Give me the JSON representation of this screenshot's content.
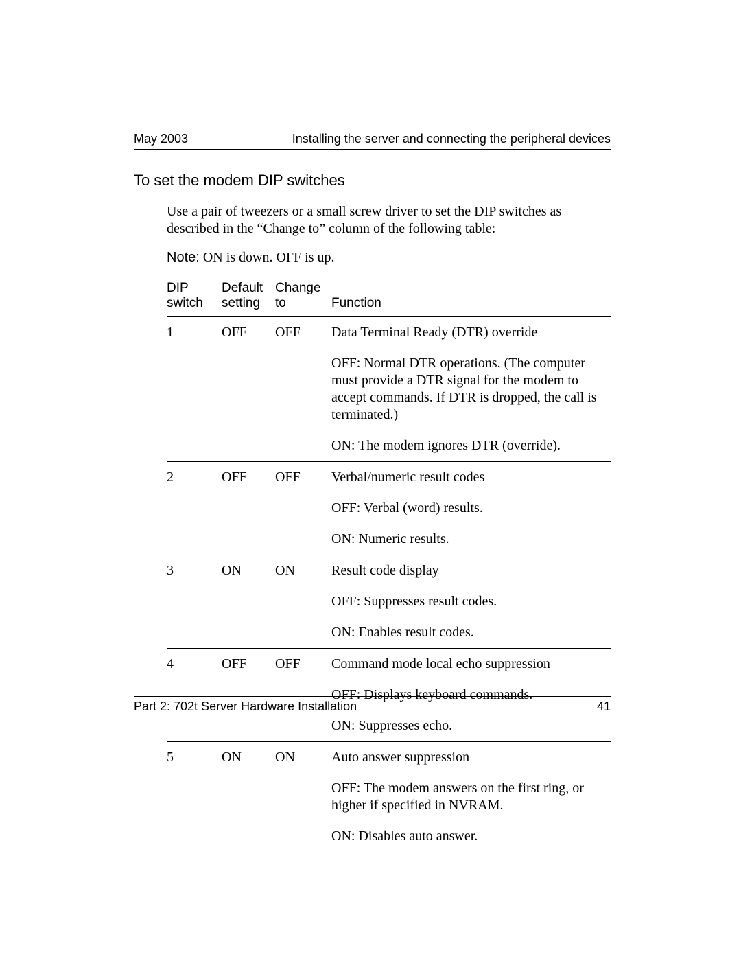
{
  "header": {
    "date": "May 2003",
    "chapter_title": "Installing the server and connecting the peripheral devices"
  },
  "section": {
    "heading": "To set the modem DIP switches",
    "intro_part1": "Use a pair of tweezers or a small screw driver to set the DIP switches as described in the ",
    "intro_quoted": "Change to",
    "intro_part2": " column of the following table:",
    "note_label": "Note:",
    "note_text": " ON is down. OFF is up."
  },
  "table": {
    "headers": {
      "col1_line1": "DIP",
      "col1_line2": "switch",
      "col2_line1": "Default",
      "col2_line2": "setting",
      "col3_line1": "Change",
      "col3_line2": "to",
      "col4": "Function"
    },
    "rows": [
      {
        "switch": "1",
        "default": "OFF",
        "change": "OFF",
        "function_heading": "Data Terminal Ready (DTR) override",
        "details": [
          "OFF: Normal DTR operations. (The computer must provide a DTR signal for the modem to accept commands. If DTR is dropped, the call is terminated.)",
          "ON: The modem ignores DTR (override)."
        ]
      },
      {
        "switch": "2",
        "default": "OFF",
        "change": "OFF",
        "function_heading": "Verbal/numeric result codes",
        "details": [
          "OFF: Verbal (word) results.",
          "ON: Numeric results."
        ]
      },
      {
        "switch": "3",
        "default": "ON",
        "change": "ON",
        "function_heading": "Result code display",
        "details": [
          "OFF: Suppresses result codes.",
          "ON: Enables result codes."
        ]
      },
      {
        "switch": "4",
        "default": "OFF",
        "change": "OFF",
        "function_heading": "Command mode local echo suppression",
        "details": [
          "OFF: Displays keyboard commands.",
          "ON: Suppresses echo."
        ]
      },
      {
        "switch": "5",
        "default": "ON",
        "change": "ON",
        "function_heading": "Auto answer suppression",
        "details": [
          "OFF: The modem answers on the first ring, or higher if specified in NVRAM.",
          "ON: Disables auto answer."
        ]
      }
    ]
  },
  "footer": {
    "part_label": "Part 2: 702t Server Hardware Installation",
    "page_number": "41"
  }
}
